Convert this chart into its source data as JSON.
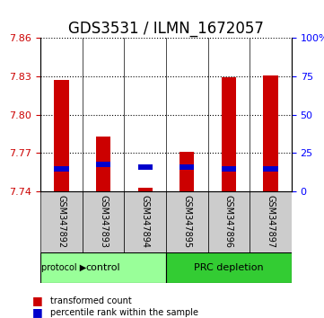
{
  "title": "GDS3531 / ILMN_1672057",
  "samples": [
    "GSM347892",
    "GSM347893",
    "GSM347894",
    "GSM347895",
    "GSM347896",
    "GSM347897"
  ],
  "groups": [
    "control",
    "control",
    "control",
    "PRC depletion",
    "PRC depletion",
    "PRC depletion"
  ],
  "transformed_counts": [
    7.827,
    7.783,
    7.743,
    7.771,
    7.829,
    7.831
  ],
  "percentile_ranks": [
    13,
    16,
    14,
    14,
    13,
    13
  ],
  "y_min": 7.74,
  "y_max": 7.86,
  "y_ticks": [
    7.74,
    7.77,
    7.8,
    7.83,
    7.86
  ],
  "right_y_ticks": [
    0,
    25,
    50,
    75,
    100
  ],
  "right_y_labels": [
    "0",
    "25",
    "50",
    "75",
    "100%"
  ],
  "bar_color_red": "#CC0000",
  "bar_color_blue": "#0000CC",
  "control_color": "#99FF99",
  "prc_color": "#33CC33",
  "group_bg_color": "#CCCCCC",
  "title_fontsize": 12,
  "tick_fontsize": 8
}
